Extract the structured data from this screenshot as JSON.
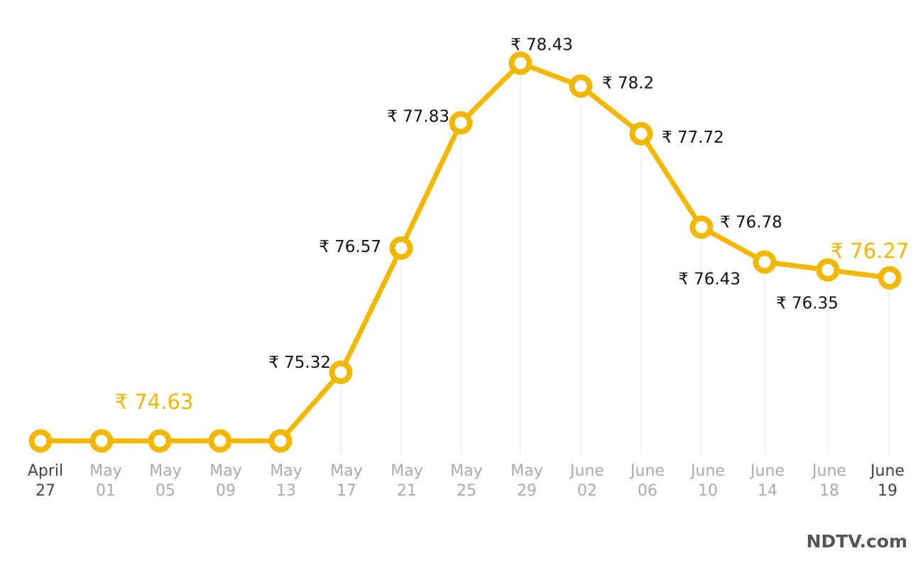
{
  "chart_data": {
    "type": "line",
    "currency_symbol": "₹",
    "color": "#f2b800",
    "grid": "vertical gridlines",
    "x": [
      {
        "month": "April",
        "day": "27"
      },
      {
        "month": "May",
        "day": "01"
      },
      {
        "month": "May",
        "day": "05"
      },
      {
        "month": "May",
        "day": "09"
      },
      {
        "month": "May",
        "day": "13"
      },
      {
        "month": "May",
        "day": "17"
      },
      {
        "month": "May",
        "day": "21"
      },
      {
        "month": "May",
        "day": "25"
      },
      {
        "month": "May",
        "day": "29"
      },
      {
        "month": "June",
        "day": "02"
      },
      {
        "month": "June",
        "day": "06"
      },
      {
        "month": "June",
        "day": "10"
      },
      {
        "month": "June",
        "day": "14"
      },
      {
        "month": "June",
        "day": "18"
      },
      {
        "month": "June",
        "day": "19"
      }
    ],
    "values": [
      74.63,
      74.63,
      74.63,
      74.63,
      74.63,
      75.32,
      76.57,
      77.83,
      78.43,
      78.2,
      77.72,
      76.78,
      76.43,
      76.35,
      76.27
    ],
    "data_labels": [
      {
        "index": 1,
        "text": "₹ 74.63",
        "highlight": true
      },
      {
        "index": 5,
        "text": "₹ 75.32",
        "highlight": false
      },
      {
        "index": 6,
        "text": "₹ 76.57",
        "highlight": false
      },
      {
        "index": 7,
        "text": "₹ 77.83",
        "highlight": false
      },
      {
        "index": 8,
        "text": "₹ 78.43",
        "highlight": false
      },
      {
        "index": 9,
        "text": "₹ 78.2",
        "highlight": false
      },
      {
        "index": 10,
        "text": "₹ 77.72",
        "highlight": false
      },
      {
        "index": 11,
        "text": "₹ 76.78",
        "highlight": false
      },
      {
        "index": 12,
        "text": "₹ 76.43",
        "highlight": false
      },
      {
        "index": 13,
        "text": "₹ 76.35",
        "highlight": false
      },
      {
        "index": 14,
        "text": "₹ 76.27",
        "highlight": true
      }
    ]
  },
  "branding": {
    "text": "NDTV.com"
  }
}
